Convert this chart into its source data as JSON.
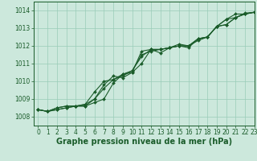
{
  "title": "Graphe pression niveau de la mer (hPa)",
  "xlim": [
    -0.5,
    23
  ],
  "ylim": [
    1007.5,
    1014.5
  ],
  "yticks": [
    1008,
    1009,
    1010,
    1011,
    1012,
    1013,
    1014
  ],
  "xticks": [
    0,
    1,
    2,
    3,
    4,
    5,
    6,
    7,
    8,
    9,
    10,
    11,
    12,
    13,
    14,
    15,
    16,
    17,
    18,
    19,
    20,
    21,
    22,
    23
  ],
  "background_color": "#cce8dc",
  "grid_color": "#99ccb8",
  "line_color": "#1a5c2a",
  "series": [
    [
      1008.4,
      1008.3,
      1008.4,
      1008.5,
      1008.6,
      1008.6,
      1008.8,
      1009.0,
      1009.9,
      1010.4,
      1010.5,
      1011.7,
      1011.8,
      1011.8,
      1011.9,
      1012.0,
      1011.9,
      1012.4,
      1012.5,
      1013.1,
      1013.5,
      1013.8,
      1013.8,
      1013.9
    ],
    [
      1008.4,
      1008.3,
      1008.4,
      1008.5,
      1008.6,
      1008.6,
      1009.0,
      1009.8,
      1010.3,
      1010.2,
      1010.5,
      1011.0,
      1011.8,
      1011.6,
      1011.9,
      1012.0,
      1012.0,
      1012.4,
      1012.5,
      1013.1,
      1013.5,
      1013.6,
      1013.8,
      1013.9
    ],
    [
      1008.4,
      1008.3,
      1008.5,
      1008.6,
      1008.6,
      1008.7,
      1009.0,
      1009.6,
      1010.1,
      1010.4,
      1010.6,
      1011.5,
      1011.7,
      1011.8,
      1011.9,
      1012.0,
      1012.0,
      1012.3,
      1012.5,
      1013.1,
      1013.2,
      1013.6,
      1013.8,
      1013.9
    ],
    [
      1008.4,
      1008.3,
      1008.5,
      1008.6,
      1008.6,
      1008.7,
      1009.4,
      1010.0,
      1010.1,
      1010.3,
      1010.6,
      1011.4,
      1011.8,
      1011.8,
      1011.9,
      1012.1,
      1012.0,
      1012.4,
      1012.5,
      1013.1,
      1013.2,
      1013.6,
      1013.85,
      1013.9
    ]
  ],
  "marker": "D",
  "marker_size": 2.0,
  "line_width": 0.8,
  "title_fontsize": 7,
  "tick_fontsize": 5.5
}
